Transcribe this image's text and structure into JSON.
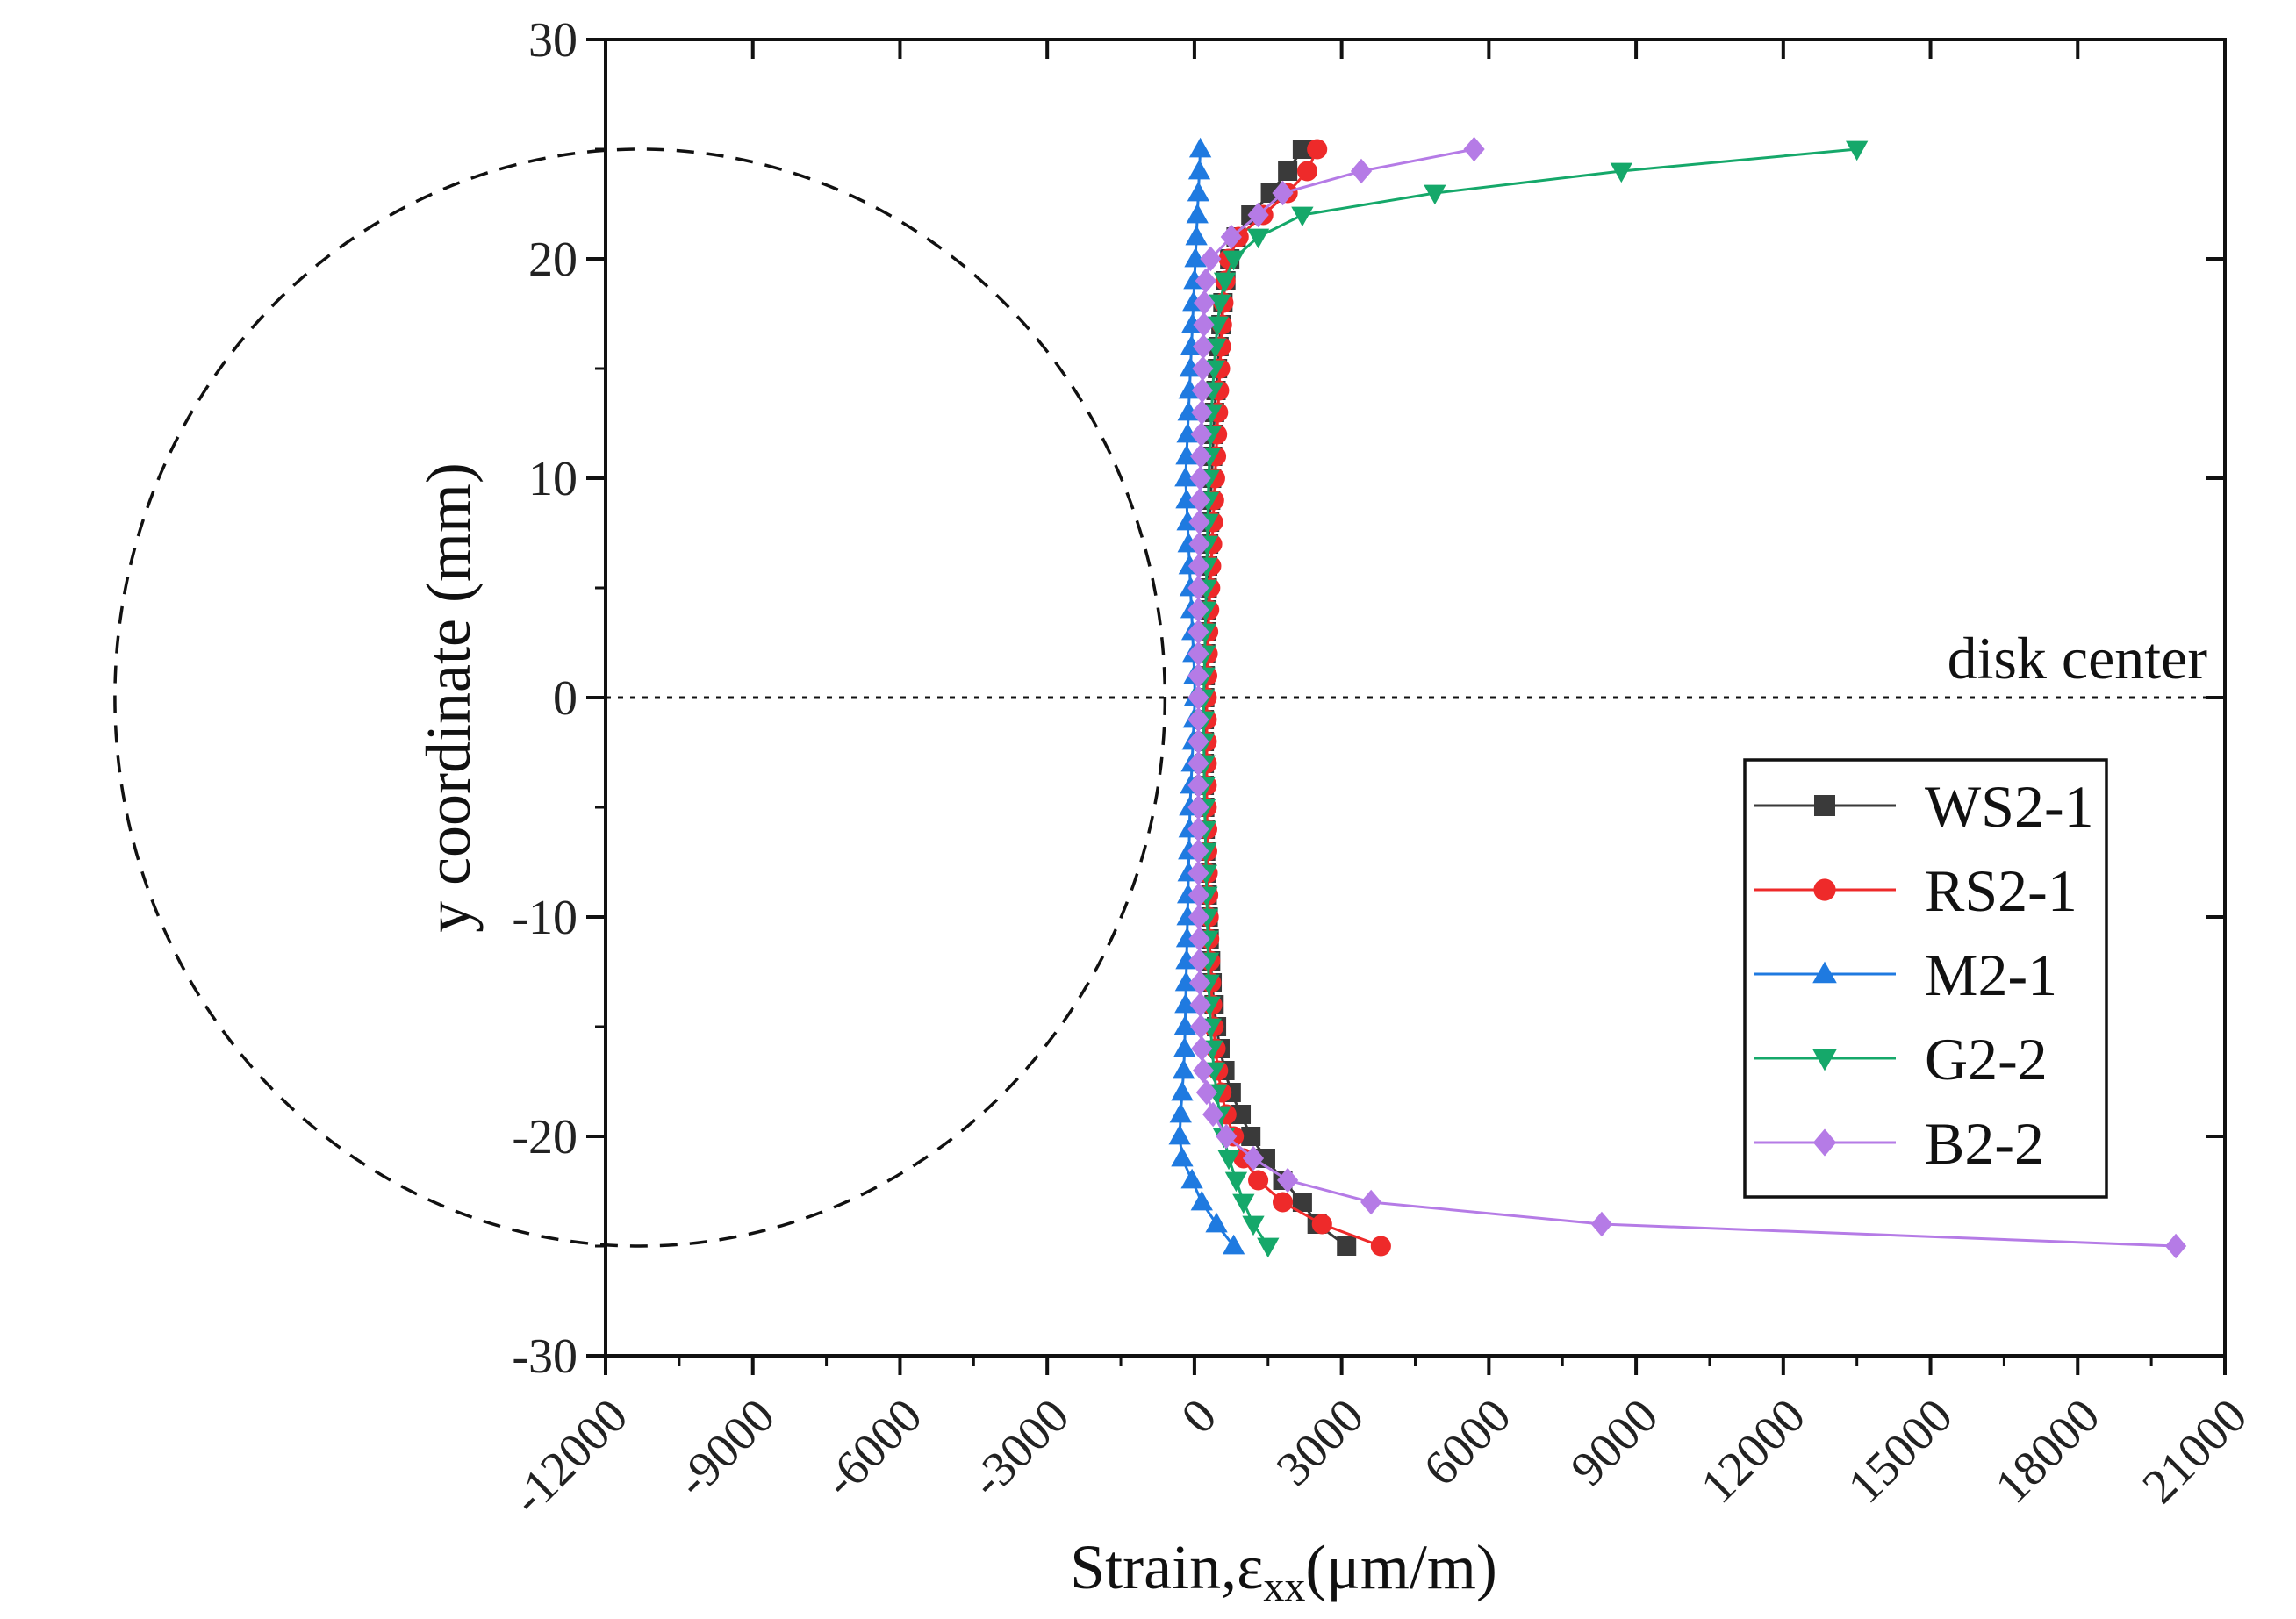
{
  "chart_data": {
    "type": "line",
    "title": "",
    "xlabel": "Strain,ε",
    "xlabel_sub": "xx",
    "xlabel_unit": "(μm/m)",
    "ylabel": "y coordinate (mm)",
    "xlim": [
      -12000,
      21000
    ],
    "ylim": [
      -30,
      30
    ],
    "x_ticks": [
      -12000,
      -9000,
      -6000,
      -3000,
      0,
      3000,
      6000,
      9000,
      12000,
      15000,
      18000,
      21000
    ],
    "x_tick_labels": [
      "-12000",
      "-9000",
      "-6000",
      "-3000",
      "0",
      "3000",
      "6000",
      "9000",
      "12000",
      "15000",
      "18000",
      "21000"
    ],
    "y_ticks": [
      -30,
      -20,
      -10,
      0,
      10,
      20,
      30
    ],
    "y_tick_labels": [
      "-30",
      "-20",
      "-10",
      "0",
      "10",
      "20",
      "30"
    ],
    "grid": false,
    "legend_position": "lower-right",
    "annotation": "disk center",
    "disk_outline": {
      "center": [
        -11300,
        0
      ],
      "radius_mm": 25
    },
    "y": [
      -25,
      -24,
      -23,
      -22,
      -21,
      -20,
      -19,
      -18,
      -17,
      -16,
      -15,
      -14,
      -13,
      -12,
      -11,
      -10,
      -9,
      -8,
      -7,
      -6,
      -5,
      -4,
      -3,
      -2,
      -1,
      0,
      1,
      2,
      3,
      4,
      5,
      6,
      7,
      8,
      9,
      10,
      11,
      12,
      13,
      14,
      15,
      16,
      17,
      18,
      19,
      20,
      21,
      22,
      23,
      24,
      25
    ],
    "series": [
      {
        "name": "WS2-1",
        "color": "#3a3a3a",
        "marker": "square",
        "x": [
          3100,
          2500,
          2200,
          1800,
          1450,
          1150,
          950,
          750,
          620,
          520,
          450,
          400,
          360,
          330,
          300,
          280,
          260,
          240,
          230,
          220,
          210,
          200,
          200,
          200,
          200,
          210,
          220,
          230,
          240,
          250,
          260,
          270,
          290,
          310,
          330,
          350,
          370,
          390,
          410,
          440,
          470,
          500,
          540,
          580,
          640,
          720,
          850,
          1150,
          1550,
          1900,
          2200
        ]
      },
      {
        "name": "RS2-1",
        "color": "#ee2a2a",
        "marker": "circle",
        "x": [
          3800,
          2600,
          1800,
          1300,
          1000,
          800,
          650,
          550,
          480,
          430,
          390,
          360,
          340,
          320,
          300,
          290,
          280,
          270,
          260,
          260,
          250,
          250,
          250,
          250,
          250,
          250,
          260,
          270,
          280,
          300,
          320,
          340,
          360,
          380,
          400,
          420,
          440,
          460,
          480,
          500,
          520,
          540,
          560,
          590,
          630,
          700,
          900,
          1400,
          1900,
          2300,
          2500
        ]
      },
      {
        "name": "M2-1",
        "color": "#1f7ae0",
        "marker": "triangle-up",
        "x": [
          800,
          450,
          150,
          -50,
          -250,
          -300,
          -280,
          -250,
          -220,
          -200,
          -190,
          -180,
          -170,
          -160,
          -150,
          -140,
          -130,
          -120,
          -110,
          -100,
          -90,
          -70,
          -50,
          -30,
          -10,
          10,
          0,
          -20,
          -40,
          -60,
          -80,
          -100,
          -120,
          -140,
          -160,
          -180,
          -160,
          -140,
          -120,
          -100,
          -80,
          -60,
          -40,
          -20,
          0,
          20,
          40,
          60,
          80,
          100,
          120
        ]
      },
      {
        "name": "G2-2",
        "color": "#15a86a",
        "marker": "triangle-down",
        "x": [
          1500,
          1200,
          1000,
          850,
          700,
          600,
          520,
          450,
          400,
          360,
          330,
          310,
          290,
          280,
          270,
          260,
          250,
          240,
          230,
          220,
          210,
          200,
          200,
          190,
          190,
          190,
          200,
          210,
          220,
          230,
          240,
          250,
          260,
          270,
          280,
          290,
          310,
          330,
          350,
          370,
          400,
          430,
          470,
          520,
          620,
          800,
          1300,
          2200,
          4900,
          8700,
          13500
        ]
      },
      {
        "name": "B2-2",
        "color": "#b57be6",
        "marker": "diamond",
        "x": [
          20000,
          8300,
          3600,
          1900,
          1200,
          650,
          380,
          250,
          180,
          150,
          130,
          120,
          110,
          100,
          100,
          90,
          90,
          80,
          80,
          80,
          80,
          80,
          80,
          80,
          80,
          80,
          80,
          80,
          80,
          80,
          80,
          90,
          100,
          100,
          110,
          120,
          130,
          140,
          150,
          160,
          170,
          180,
          190,
          200,
          230,
          330,
          750,
          1300,
          1800,
          3400,
          5700
        ]
      }
    ]
  }
}
